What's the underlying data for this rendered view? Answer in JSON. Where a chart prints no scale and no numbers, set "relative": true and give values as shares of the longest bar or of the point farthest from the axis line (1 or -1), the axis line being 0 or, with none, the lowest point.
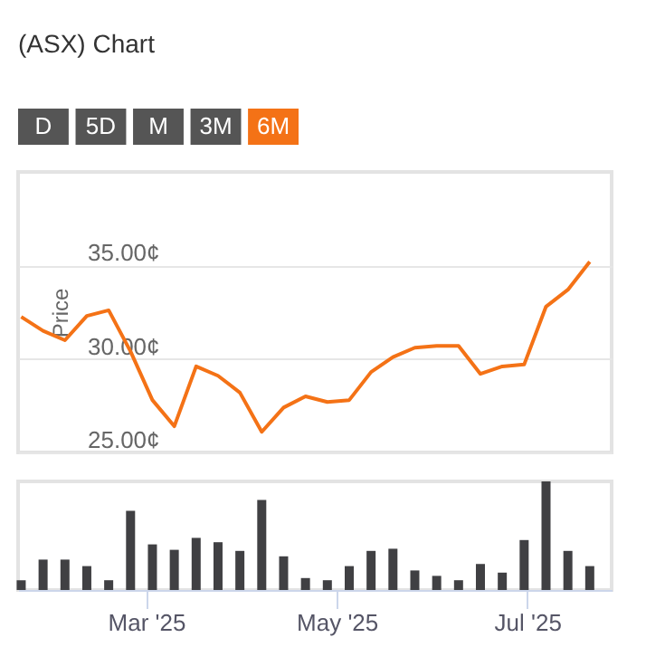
{
  "chart_data": [
    {
      "type": "other",
      "title": "(ASX) Chart",
      "categories": [
        "D",
        "5D",
        "M",
        "3M",
        "6M"
      ],
      "colors": [
        "#555555",
        "#555555",
        "#555555",
        "#555555",
        "#f47216"
      ]
    },
    {
      "type": "line",
      "ylabel": "Price",
      "x": [
        "2025-01-20",
        "2025-01-27",
        "2025-02-03",
        "2025-02-10",
        "2025-02-17",
        "2025-02-24",
        "2025-03-03",
        "2025-03-10",
        "2025-03-17",
        "2025-03-24",
        "2025-03-31",
        "2025-04-07",
        "2025-04-14",
        "2025-04-21",
        "2025-04-28",
        "2025-05-05",
        "2025-05-12",
        "2025-05-19",
        "2025-05-26",
        "2025-06-02",
        "2025-06-09",
        "2025-06-16",
        "2025-06-23",
        "2025-06-30",
        "2025-07-07",
        "2025-07-14",
        "2025-07-21"
      ],
      "series": [
        {
          "color": "#f47216",
          "values": [
            32.25,
            31.5,
            31.0,
            32.3,
            32.6,
            30.4,
            27.8,
            26.4,
            29.6,
            29.1,
            28.2,
            26.1,
            27.4,
            28.0,
            27.7,
            27.8,
            29.3,
            30.1,
            30.6,
            30.7,
            30.7,
            29.2,
            29.6,
            29.7,
            32.8,
            33.7,
            35.2
          ]
        }
      ],
      "xlim": [
        "2025-01-19",
        "2025-07-28"
      ],
      "ylim": [
        25,
        40
      ],
      "yticks": [
        {
          "value": 25,
          "label": "25.00¢"
        },
        {
          "value": 30,
          "label": "30.00¢"
        },
        {
          "value": 35,
          "label": "35.00¢"
        }
      ],
      "grid": "y",
      "tick_labels": "y",
      "marker": "none",
      "line_style": "solid"
    },
    {
      "type": "bar",
      "relative": true,
      "x": [
        "2025-01-20",
        "2025-01-27",
        "2025-02-03",
        "2025-02-10",
        "2025-02-17",
        "2025-02-24",
        "2025-03-03",
        "2025-03-10",
        "2025-03-17",
        "2025-03-24",
        "2025-03-31",
        "2025-04-07",
        "2025-04-14",
        "2025-04-21",
        "2025-04-28",
        "2025-05-05",
        "2025-05-12",
        "2025-05-19",
        "2025-05-26",
        "2025-06-02",
        "2025-06-09",
        "2025-06-16",
        "2025-06-23",
        "2025-06-30",
        "2025-07-07",
        "2025-07-14",
        "2025-07-21"
      ],
      "series": [
        {
          "color": "#404043",
          "values": [
            0.09,
            0.28,
            0.28,
            0.22,
            0.09,
            0.73,
            0.42,
            0.37,
            0.48,
            0.44,
            0.36,
            0.83,
            0.31,
            0.11,
            0.09,
            0.22,
            0.36,
            0.38,
            0.18,
            0.13,
            0.09,
            0.24,
            0.16,
            0.46,
            1.0,
            0.36,
            0.22
          ]
        }
      ],
      "xlim": [
        "2025-01-19",
        "2025-07-28"
      ],
      "xticks": [
        {
          "value": "2025-03-01",
          "label": "Mar '25"
        },
        {
          "value": "2025-05-01",
          "label": "May '25"
        },
        {
          "value": "2025-07-01",
          "label": "Jul '25"
        }
      ],
      "tick_labels": "x",
      "grid": false
    }
  ]
}
